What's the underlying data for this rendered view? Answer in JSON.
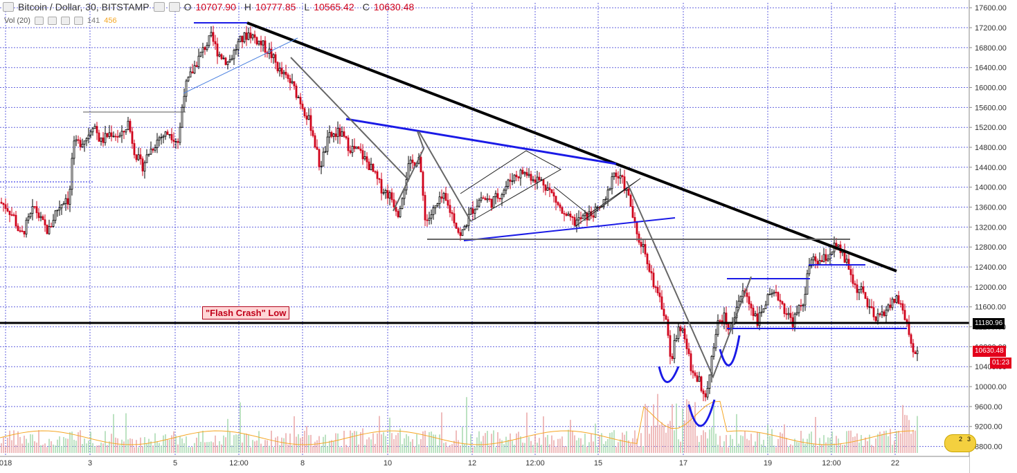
{
  "header": {
    "symbol": "Bitcoin / Dollar, 30, BITSTAMP",
    "open_label": "O",
    "open": "10707.90",
    "high_label": "H",
    "high": "10777.85",
    "low_label": "L",
    "low": "10565.42",
    "close_label": "C",
    "close": "10630.48"
  },
  "volume": {
    "label": "Vol (20)",
    "v1": "141",
    "v2": "456"
  },
  "annotation": {
    "flash_crash": "\"Flash Crash\" Low"
  },
  "price_tags": {
    "line": "11180.96",
    "last": "10630.48",
    "countdown": "01:23",
    "partial": "104"
  },
  "flag_badge": {
    "left": "2",
    "right": "3"
  },
  "colors": {
    "up": "#000000",
    "down": "#d0021b",
    "grid": "#3b3bd8",
    "trend_black": "#000000",
    "trend_blue": "#1a1ae6",
    "trend_gray": "#666666"
  },
  "chart_data": {
    "type": "candlestick",
    "title": "Bitcoin / Dollar, 30, BITSTAMP",
    "y_ticks": [
      "17600.00",
      "17200.00",
      "16800.00",
      "16400.00",
      "16000.00",
      "15600.00",
      "15200.00",
      "14800.00",
      "14400.00",
      "14000.00",
      "13600.00",
      "13200.00",
      "12800.00",
      "12400.00",
      "12000.00",
      "11600.00",
      "11200.00",
      "10800.00",
      "10400.00",
      "10000.00",
      "9600.00",
      "9200.00",
      "8800.00"
    ],
    "ylim": [
      8600,
      17700
    ],
    "x_ticks": [
      "018",
      "3",
      "5",
      "12:00",
      "8",
      "10",
      "12",
      "12:00",
      "15",
      "17",
      "19",
      "12:00",
      "22"
    ],
    "horizontal_line": 11180.96,
    "price_path": [
      [
        0,
        13700
      ],
      [
        10,
        13600
      ],
      [
        20,
        13400
      ],
      [
        30,
        13000
      ],
      [
        40,
        13300
      ],
      [
        50,
        13600
      ],
      [
        60,
        13300
      ],
      [
        70,
        13100
      ],
      [
        80,
        13500
      ],
      [
        95,
        13800
      ],
      [
        100,
        13700
      ],
      [
        105,
        14800
      ],
      [
        115,
        14900
      ],
      [
        125,
        15000
      ],
      [
        135,
        15300
      ],
      [
        145,
        14900
      ],
      [
        160,
        15100
      ],
      [
        175,
        15000
      ],
      [
        185,
        15300
      ],
      [
        195,
        14700
      ],
      [
        205,
        14400
      ],
      [
        215,
        14700
      ],
      [
        230,
        15000
      ],
      [
        245,
        15100
      ],
      [
        258,
        14900
      ],
      [
        265,
        15900
      ],
      [
        280,
        16400
      ],
      [
        295,
        16800
      ],
      [
        305,
        17000
      ],
      [
        315,
        16700
      ],
      [
        330,
        16500
      ],
      [
        345,
        16900
      ],
      [
        360,
        17100
      ],
      [
        375,
        16900
      ],
      [
        390,
        16700
      ],
      [
        405,
        16300
      ],
      [
        420,
        16100
      ],
      [
        435,
        15700
      ],
      [
        450,
        15200
      ],
      [
        462,
        14400
      ],
      [
        475,
        15000
      ],
      [
        490,
        15100
      ],
      [
        505,
        14800
      ],
      [
        520,
        14700
      ],
      [
        535,
        14400
      ],
      [
        550,
        14000
      ],
      [
        565,
        13800
      ],
      [
        575,
        13500
      ],
      [
        590,
        14400
      ],
      [
        605,
        14600
      ],
      [
        615,
        13300
      ],
      [
        625,
        13500
      ],
      [
        640,
        13800
      ],
      [
        655,
        13400
      ],
      [
        665,
        13000
      ],
      [
        680,
        13500
      ],
      [
        695,
        13800
      ],
      [
        710,
        13700
      ],
      [
        725,
        13900
      ],
      [
        740,
        14200
      ],
      [
        755,
        14300
      ],
      [
        770,
        14200
      ],
      [
        785,
        14100
      ],
      [
        800,
        13800
      ],
      [
        815,
        13400
      ],
      [
        830,
        13300
      ],
      [
        845,
        13400
      ],
      [
        860,
        13500
      ],
      [
        875,
        13700
      ],
      [
        885,
        14300
      ],
      [
        900,
        14100
      ],
      [
        910,
        13700
      ],
      [
        920,
        13000
      ],
      [
        930,
        12800
      ],
      [
        940,
        12300
      ],
      [
        950,
        11800
      ],
      [
        960,
        11500
      ],
      [
        970,
        10500
      ],
      [
        980,
        11300
      ],
      [
        990,
        10900
      ],
      [
        1000,
        10300
      ],
      [
        1010,
        10100
      ],
      [
        1015,
        9700
      ],
      [
        1025,
        10200
      ],
      [
        1035,
        11200
      ],
      [
        1045,
        11400
      ],
      [
        1055,
        11100
      ],
      [
        1065,
        11700
      ],
      [
        1075,
        11900
      ],
      [
        1085,
        11600
      ],
      [
        1095,
        11300
      ],
      [
        1105,
        11700
      ],
      [
        1115,
        11800
      ],
      [
        1125,
        11800
      ],
      [
        1135,
        11500
      ],
      [
        1145,
        11300
      ],
      [
        1160,
        11700
      ],
      [
        1170,
        12500
      ],
      [
        1185,
        12500
      ],
      [
        1195,
        12600
      ],
      [
        1205,
        12800
      ],
      [
        1215,
        12700
      ],
      [
        1225,
        12400
      ],
      [
        1235,
        12000
      ],
      [
        1245,
        11900
      ],
      [
        1255,
        11600
      ],
      [
        1265,
        11300
      ],
      [
        1275,
        11500
      ],
      [
        1285,
        11600
      ],
      [
        1295,
        11800
      ],
      [
        1305,
        11500
      ],
      [
        1312,
        11100
      ],
      [
        1318,
        10700
      ],
      [
        1325,
        10630
      ]
    ]
  }
}
